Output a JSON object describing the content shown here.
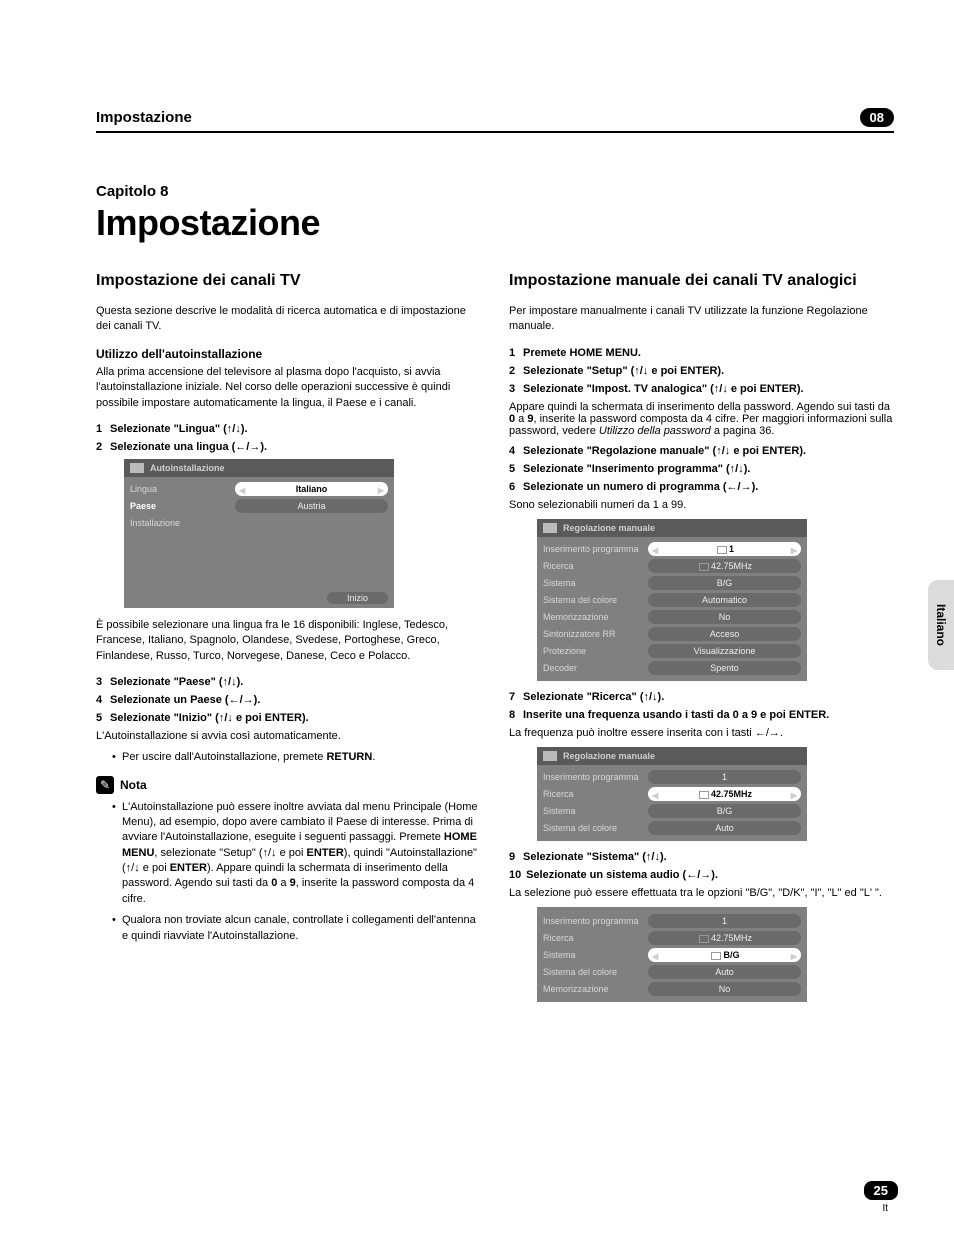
{
  "header": {
    "section": "Impostazione",
    "chapter_badge": "08"
  },
  "chapter": {
    "label": "Capitolo 8",
    "title": "Impostazione"
  },
  "left": {
    "heading": "Impostazione dei canali TV",
    "intro": "Questa sezione descrive le modalità di ricerca automatica e di impostazione dei canali TV.",
    "sub1": "Utilizzo dell'autoinstallazione",
    "sub1_body": "Alla prima accensione del televisore al plasma dopo l'acquisto, si avvia l'autoinstallazione iniziale. Nel corso delle operazioni successive è quindi possibile impostare automaticamente la lingua, il Paese e i canali.",
    "step1": "Selezionate \"Lingua\" (",
    "step1_tail": ").",
    "step2": "Selezionate una lingua (",
    "step2_tail": ").",
    "panel1": {
      "title": "Autoinstallazione",
      "row1_label": "Lingua",
      "row1_val": "Italiano",
      "row2_label": "Paese",
      "row2_val": "Austria",
      "row3_label": "Installazione",
      "start_btn": "Inizio"
    },
    "after_panel1": "È possibile selezionare una lingua fra le 16 disponibili: Inglese, Tedesco, Francese, Italiano, Spagnolo, Olandese, Svedese, Portoghese, Greco, Finlandese, Russo, Turco, Norvegese, Danese, Ceco e Polacco.",
    "step3": "Selezionate \"Paese\" (",
    "step4": "Selezionate un Paese (",
    "step5": "Selezionate \"Inizio\" (",
    "step5_tail": " e poi ENTER).",
    "step5_sub": "L'Autoinstallazione si avvia così automaticamente.",
    "bullet_a": "Per uscire dall'Autoinstallazione, premete ",
    "bullet_a_b": "RETURN",
    "nota_label": "Nota",
    "nota1_a": "L'Autoinstallazione può essere inoltre avviata dal menu Principale (Home Menu), ad esempio, dopo avere cambiato il Paese di interesse. Prima di avviare l'Autoinstallazione, eseguite i seguenti passaggi. Premete ",
    "nota1_b": "HOME MENU",
    "nota1_c": ", selezionate \"Setup\" (",
    "nota1_d": " e poi ",
    "nota1_e": "ENTER",
    "nota1_f": "), quindi \"Autoinstallazione\" (",
    "nota1_g": " e poi ",
    "nota1_h": "ENTER",
    "nota1_i": "). Appare quindi la schermata di inserimento della password. Agendo sui tasti da ",
    "nota1_j": "0",
    "nota1_k": " a ",
    "nota1_l": "9",
    "nota1_m": ", inserite la password composta da 4 cifre.",
    "nota2": "Qualora non troviate alcun canale, controllate i collegamenti dell'antenna e quindi riavviate l'Autoinstallazione."
  },
  "right": {
    "heading": "Impostazione manuale dei canali TV analogici",
    "intro": "Per impostare manualmente i canali TV utilizzate la funzione Regolazione manuale.",
    "step1": "Premete HOME MENU.",
    "step2": "Selezionate \"Setup\" (",
    "step2_tail": " e poi ENTER).",
    "step3": "Selezionate \"Impost. TV analogica\" (",
    "step3_tail": " e poi ENTER).",
    "step3_sub_a": "Appare quindi la schermata di inserimento della password. Agendo sui tasti da ",
    "step3_sub_b": "0",
    "step3_sub_c": " a ",
    "step3_sub_d": "9",
    "step3_sub_e": ", inserite la password composta da 4 cifre. Per maggiori informazioni sulla password, vedere ",
    "step3_sub_f": "Utilizzo della password",
    "step3_sub_g": " a pagina 36.",
    "step4": "Selezionate \"Regolazione manuale\" (",
    "step5": "Selezionate \"Inserimento programma\" (",
    "step5_tail": ").",
    "step6": "Selezionate un numero di programma (",
    "step6_tail": ").",
    "step6_sub": "Sono selezionabili numeri da 1 a 99.",
    "panel2": {
      "title": "Regolazione manuale",
      "rows": [
        {
          "label": "Inserimento programma",
          "val": "1",
          "active": true
        },
        {
          "label": "Ricerca",
          "val": "42.75MHz"
        },
        {
          "label": "Sistema",
          "val": "B/G"
        },
        {
          "label": "Sistema del colore",
          "val": "Automatico"
        },
        {
          "label": "Memorizzazione",
          "val": "No"
        },
        {
          "label": "Sintonizzatore RR",
          "val": "Acceso"
        },
        {
          "label": "Protezione",
          "val": "Visualizzazione"
        },
        {
          "label": "Decoder",
          "val": "Spento"
        }
      ]
    },
    "step7": "Selezionate \"Ricerca\" (",
    "step8": "Inserite una frequenza usando i tasti da 0 a 9 e poi ENTER.",
    "step8_sub": "La frequenza può inoltre essere inserita con i tasti ",
    "panel3": {
      "title": "Regolazione manuale",
      "rows": [
        {
          "label": "Inserimento programma",
          "val": "1"
        },
        {
          "label": "Ricerca",
          "val": "42.75MHz",
          "active": true
        },
        {
          "label": "Sistema",
          "val": "B/G"
        },
        {
          "label": "Sistema del colore",
          "val": "Auto"
        }
      ]
    },
    "step9": "Selezionate \"Sistema\" (",
    "step10": "Selezionate un sistema audio (",
    "step10_sub": "La selezione può essere effettuata tra le opzioni \"B/G\", \"D/K\", \"I\", \"L\" ed \"L' \".",
    "panel4": {
      "rows": [
        {
          "label": "Inserimento programma",
          "val": "1"
        },
        {
          "label": "Ricerca",
          "val": "42.75MHz"
        },
        {
          "label": "Sistema",
          "val": "B/G",
          "active": true
        },
        {
          "label": "Sistema del colore",
          "val": "Auto"
        },
        {
          "label": "Memorizzazione",
          "val": "No"
        }
      ]
    }
  },
  "side_tab": "Italiano",
  "page_num": "25",
  "page_lang": "It"
}
